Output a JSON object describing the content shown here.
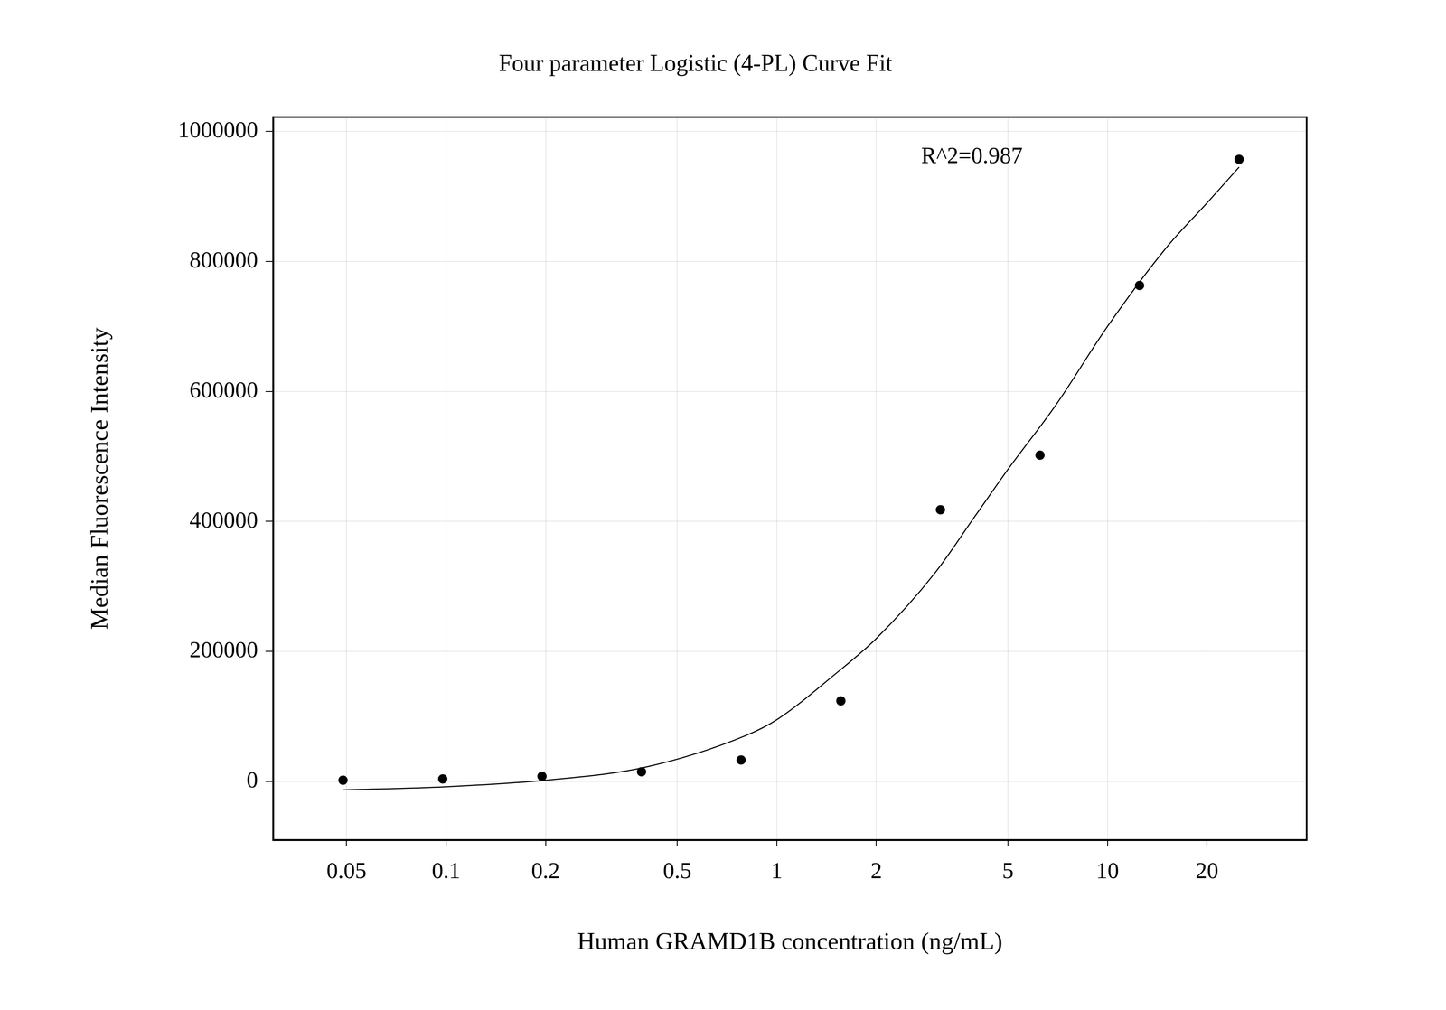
{
  "chart_data": {
    "type": "scatter",
    "title": "Four parameter Logistic (4-PL) Curve Fit",
    "x_label": "Human GRAMD1B concentration (ng/mL)",
    "y_label": "Median Fluorescence Intensity",
    "annotation": "R^2=0.987",
    "log": "x",
    "grid": true,
    "xlim": [
      0.03,
      40
    ],
    "xticks": [
      0.05,
      0.1,
      0.2,
      0.5,
      1,
      2,
      5,
      10,
      20
    ],
    "ylim": [
      -90000,
      1022000
    ],
    "yticks": [
      0,
      200000,
      400000,
      600000,
      800000,
      1000000
    ],
    "series": [
      {
        "type": "scatter",
        "color": "#000000",
        "marker": "circle",
        "x": [
          0.0488,
          0.0977,
          0.195,
          0.39,
          0.78,
          1.5625,
          3.125,
          6.25,
          12.5,
          25
        ],
        "values": [
          2000,
          4000,
          8000,
          15000,
          33000,
          124000,
          418000,
          502000,
          763000,
          957000
        ]
      },
      {
        "type": "line",
        "color": "#000000",
        "line_style": "solid",
        "x": [
          0.0488,
          0.1,
          0.2,
          0.4,
          0.8,
          1,
          1.5,
          2,
          3,
          4,
          5,
          7,
          10,
          15,
          20,
          25
        ],
        "values": [
          -13000,
          -8000,
          2000,
          22000,
          70000,
          95000,
          165000,
          220000,
          320000,
          410000,
          480000,
          580000,
          700000,
          820000,
          890000,
          945000
        ]
      }
    ]
  }
}
